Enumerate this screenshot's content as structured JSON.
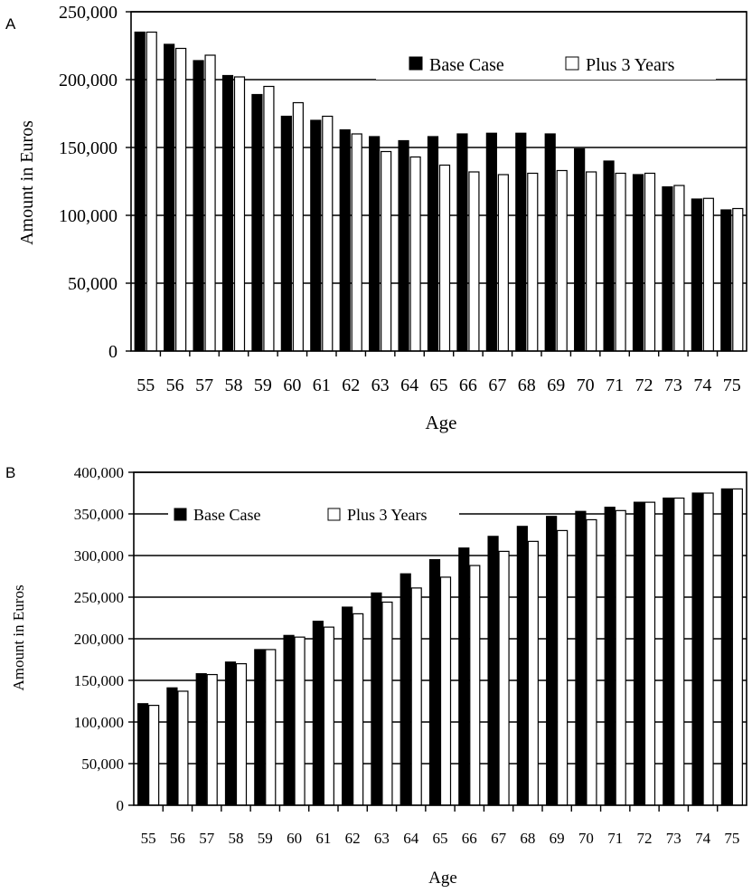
{
  "chart_data": [
    {
      "panel_label": "A",
      "type": "bar",
      "title": "",
      "xlabel": "Age",
      "ylabel": "Amount in Euros",
      "categories": [
        "55",
        "56",
        "57",
        "58",
        "59",
        "60",
        "61",
        "62",
        "63",
        "64",
        "65",
        "66",
        "67",
        "68",
        "69",
        "70",
        "71",
        "72",
        "73",
        "74",
        "75"
      ],
      "series": [
        {
          "name": "Base Case",
          "color": "#000000",
          "values": [
            235000,
            226000,
            214000,
            203000,
            189000,
            173000,
            170000,
            163000,
            158000,
            155000,
            158000,
            160000,
            160500,
            160500,
            160000,
            149000,
            140000,
            130000,
            121000,
            112000,
            104000
          ]
        },
        {
          "name": "Plus 3 Years",
          "color": "#ffffff",
          "values": [
            235000,
            223000,
            218000,
            202000,
            195000,
            183000,
            173000,
            160000,
            147000,
            143000,
            137000,
            132000,
            130000,
            131000,
            133000,
            132000,
            131000,
            131000,
            122000,
            112500,
            105000
          ]
        }
      ],
      "ylim": [
        0,
        250000
      ],
      "yticks": [
        "0",
        "50,000",
        "100,000",
        "150,000",
        "200,000",
        "250,000"
      ],
      "grid": "horizontal",
      "legend_position": "top-right"
    },
    {
      "panel_label": "B",
      "type": "bar",
      "title": "",
      "xlabel": "Age",
      "ylabel": "Amount in Euros",
      "categories": [
        "55",
        "56",
        "57",
        "58",
        "59",
        "60",
        "61",
        "62",
        "63",
        "64",
        "65",
        "66",
        "67",
        "68",
        "69",
        "70",
        "71",
        "72",
        "73",
        "74",
        "75"
      ],
      "series": [
        {
          "name": "Base Case",
          "color": "#000000",
          "values": [
            122000,
            141000,
            158000,
            172000,
            187000,
            204000,
            221000,
            238000,
            255000,
            278000,
            295000,
            309000,
            323000,
            335000,
            347000,
            353000,
            358000,
            364000,
            369000,
            375000,
            380000
          ]
        },
        {
          "name": "Plus 3 Years",
          "color": "#ffffff",
          "values": [
            120000,
            137000,
            157000,
            170000,
            187000,
            202000,
            214000,
            230000,
            244000,
            261000,
            274000,
            288000,
            305000,
            317000,
            330000,
            343000,
            354000,
            364000,
            369000,
            375000,
            380000
          ]
        }
      ],
      "ylim": [
        0,
        400000
      ],
      "yticks": [
        "0",
        "50,000",
        "100,000",
        "150,000",
        "200,000",
        "250,000",
        "300,000",
        "350,000",
        "400,000"
      ],
      "grid": "horizontal",
      "legend_position": "top-left"
    }
  ]
}
